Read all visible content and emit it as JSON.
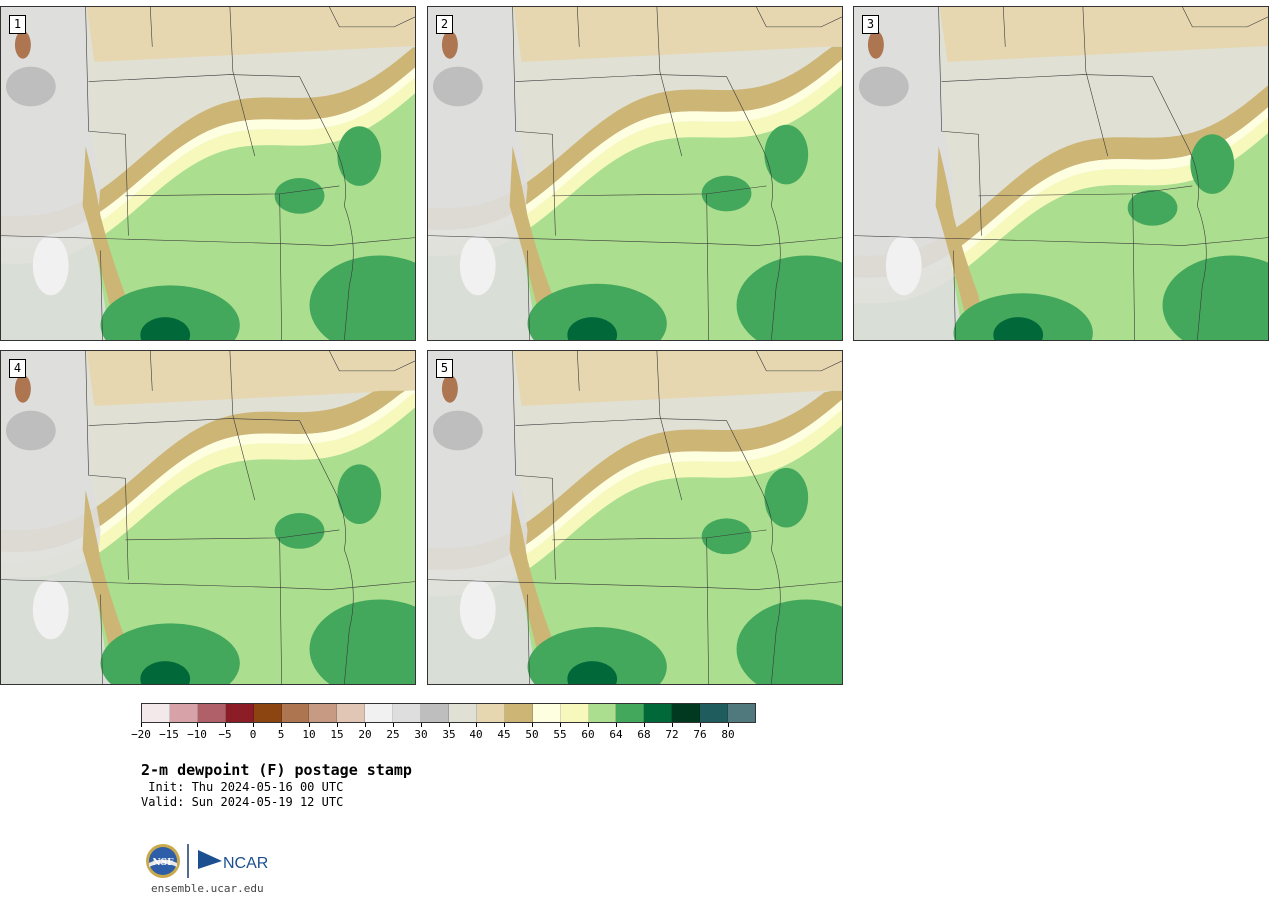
{
  "panels": [
    {
      "label": "1",
      "moist_shift": 0
    },
    {
      "label": "2",
      "moist_shift": 8
    },
    {
      "label": "3",
      "moist_shift": -40
    },
    {
      "label": "4",
      "moist_shift": 30
    },
    {
      "label": "5",
      "moist_shift": 12
    }
  ],
  "colorbar": {
    "colors": [
      "#f4e9ea",
      "#d7a3a9",
      "#b06068",
      "#8c1c25",
      "#8c4411",
      "#ad7651",
      "#c69a83",
      "#e1c6b6",
      "#f1f1f1",
      "#dedede",
      "#bebebe",
      "#e0e0d5",
      "#e6d7b1",
      "#cdb576",
      "#fefee1",
      "#f6f8bc",
      "#abde8e",
      "#43a85c",
      "#006839",
      "#00391f",
      "#1f5c5d",
      "#50797d"
    ],
    "ticks": [
      "−20",
      "−15",
      "−10",
      "−5",
      "0",
      "5",
      "10",
      "15",
      "20",
      "25",
      "30",
      "35",
      "40",
      "45",
      "50",
      "55",
      "60",
      "64",
      "68",
      "72",
      "76",
      "80"
    ]
  },
  "title": "2-m dewpoint (F) postage stamp",
  "init": " Init: Thu 2024-05-16 00 UTC",
  "valid": "Valid: Sun 2024-05-19 12 UTC",
  "logos": {
    "nsf": "NSF",
    "ncar": "NCAR"
  },
  "site": "ensemble.ucar.edu"
}
